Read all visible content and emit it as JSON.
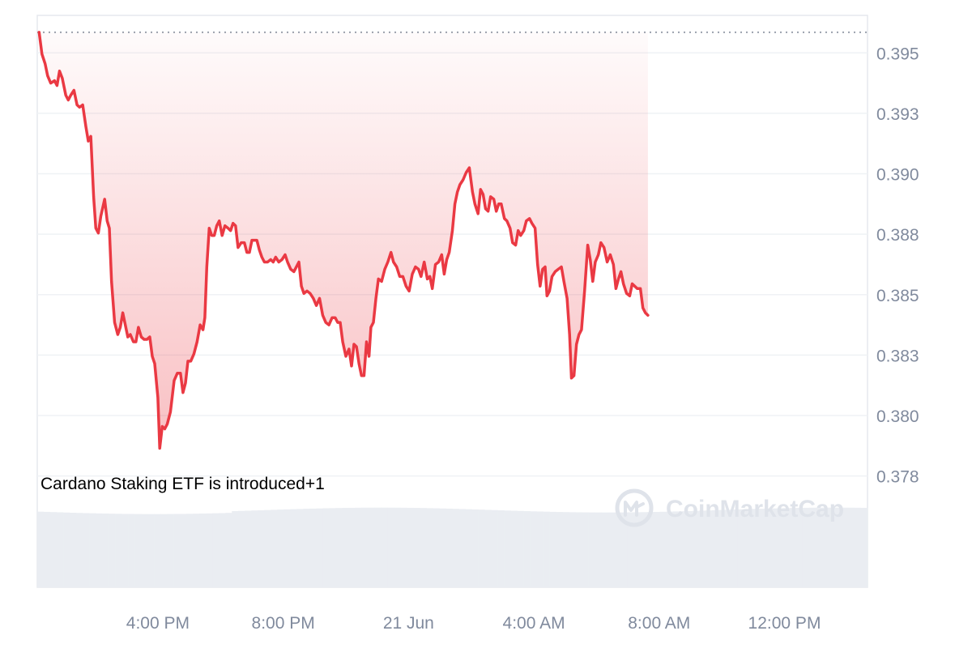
{
  "annotation": {
    "text": "Cardano Staking ETF is introduced+1"
  },
  "watermark": {
    "text": "CoinMarketCap",
    "icon": "coinmarketcap-logo-icon"
  },
  "colors": {
    "line": "#ea3943",
    "area_fill": "#ea3943",
    "grid": "#eff2f5",
    "axis_text": "#808a9d",
    "volume": "#eaedf2",
    "reference_line": "#9aa1ad"
  },
  "chart_data": {
    "type": "area",
    "title": "",
    "xlabel": "",
    "ylabel": "",
    "x_ticks": [
      "4:00 PM",
      "8:00 PM",
      "21 Jun",
      "4:00 AM",
      "8:00 AM",
      "12:00 PM"
    ],
    "x_tick_hours": [
      4,
      8,
      12,
      16,
      20,
      24
    ],
    "x_range_hours": [
      0.15,
      26.65
    ],
    "y_ticks": [
      "0.395",
      "0.393",
      "0.390",
      "0.388",
      "0.385",
      "0.383",
      "0.380",
      "0.378"
    ],
    "y_tick_values": [
      0.39525,
      0.39275,
      0.39025,
      0.38775,
      0.38525,
      0.38275,
      0.38025,
      0.37775
    ],
    "y_range": [
      0.3765,
      0.3968
    ],
    "reference_value": 0.3961,
    "grid": "horizontal",
    "series": [
      {
        "points": [
          [
            0.21,
            0.3961
          ],
          [
            0.3,
            0.3952
          ],
          [
            0.4,
            0.3948
          ],
          [
            0.48,
            0.3943
          ],
          [
            0.58,
            0.394
          ],
          [
            0.7,
            0.3941
          ],
          [
            0.78,
            0.3939
          ],
          [
            0.86,
            0.3945
          ],
          [
            0.95,
            0.3942
          ],
          [
            1.06,
            0.3935
          ],
          [
            1.14,
            0.3933
          ],
          [
            1.22,
            0.3935
          ],
          [
            1.32,
            0.3937
          ],
          [
            1.42,
            0.3931
          ],
          [
            1.5,
            0.393
          ],
          [
            1.6,
            0.3931
          ],
          [
            1.7,
            0.3922
          ],
          [
            1.78,
            0.3916
          ],
          [
            1.86,
            0.3918
          ],
          [
            1.95,
            0.3893
          ],
          [
            2.02,
            0.388
          ],
          [
            2.1,
            0.3878
          ],
          [
            2.18,
            0.3885
          ],
          [
            2.3,
            0.3892
          ],
          [
            2.38,
            0.3883
          ],
          [
            2.45,
            0.388
          ],
          [
            2.52,
            0.3858
          ],
          [
            2.62,
            0.3841
          ],
          [
            2.72,
            0.3836
          ],
          [
            2.8,
            0.3839
          ],
          [
            2.88,
            0.3845
          ],
          [
            2.96,
            0.384
          ],
          [
            3.04,
            0.3835
          ],
          [
            3.12,
            0.3836
          ],
          [
            3.22,
            0.3833
          ],
          [
            3.3,
            0.3833
          ],
          [
            3.38,
            0.3839
          ],
          [
            3.47,
            0.3835
          ],
          [
            3.56,
            0.3834
          ],
          [
            3.65,
            0.3834
          ],
          [
            3.74,
            0.3835
          ],
          [
            3.82,
            0.3827
          ],
          [
            3.9,
            0.3824
          ],
          [
            4.0,
            0.381
          ],
          [
            4.06,
            0.3789
          ],
          [
            4.14,
            0.3798
          ],
          [
            4.22,
            0.3797
          ],
          [
            4.3,
            0.3799
          ],
          [
            4.4,
            0.3804
          ],
          [
            4.52,
            0.3817
          ],
          [
            4.62,
            0.382
          ],
          [
            4.72,
            0.382
          ],
          [
            4.8,
            0.3812
          ],
          [
            4.88,
            0.3816
          ],
          [
            4.96,
            0.3825
          ],
          [
            5.05,
            0.3825
          ],
          [
            5.15,
            0.3828
          ],
          [
            5.25,
            0.3833
          ],
          [
            5.35,
            0.384
          ],
          [
            5.44,
            0.3838
          ],
          [
            5.5,
            0.3843
          ],
          [
            5.56,
            0.3864
          ],
          [
            5.64,
            0.388
          ],
          [
            5.72,
            0.3877
          ],
          [
            5.8,
            0.3877
          ],
          [
            5.88,
            0.3881
          ],
          [
            5.96,
            0.3883
          ],
          [
            6.05,
            0.3877
          ],
          [
            6.14,
            0.3881
          ],
          [
            6.24,
            0.388
          ],
          [
            6.32,
            0.3879
          ],
          [
            6.4,
            0.3882
          ],
          [
            6.48,
            0.3881
          ],
          [
            6.56,
            0.3872
          ],
          [
            6.66,
            0.3874
          ],
          [
            6.76,
            0.3874
          ],
          [
            6.84,
            0.387
          ],
          [
            6.92,
            0.387
          ],
          [
            7.0,
            0.3875
          ],
          [
            7.08,
            0.3875
          ],
          [
            7.16,
            0.3875
          ],
          [
            7.24,
            0.3871
          ],
          [
            7.32,
            0.3868
          ],
          [
            7.4,
            0.3866
          ],
          [
            7.5,
            0.3866
          ],
          [
            7.6,
            0.3867
          ],
          [
            7.68,
            0.3866
          ],
          [
            7.76,
            0.3868
          ],
          [
            7.86,
            0.3866
          ],
          [
            7.96,
            0.3867
          ],
          [
            8.06,
            0.3869
          ],
          [
            8.14,
            0.3866
          ],
          [
            8.24,
            0.3863
          ],
          [
            8.34,
            0.3862
          ],
          [
            8.42,
            0.3864
          ],
          [
            8.5,
            0.3866
          ],
          [
            8.58,
            0.3856
          ],
          [
            8.66,
            0.3853
          ],
          [
            8.76,
            0.3854
          ],
          [
            8.86,
            0.3853
          ],
          [
            8.96,
            0.3851
          ],
          [
            9.06,
            0.3848
          ],
          [
            9.16,
            0.3851
          ],
          [
            9.26,
            0.3844
          ],
          [
            9.36,
            0.3841
          ],
          [
            9.46,
            0.384
          ],
          [
            9.56,
            0.3843
          ],
          [
            9.66,
            0.3843
          ],
          [
            9.74,
            0.3841
          ],
          [
            9.82,
            0.3841
          ],
          [
            9.9,
            0.3833
          ],
          [
            10.0,
            0.3827
          ],
          [
            10.1,
            0.383
          ],
          [
            10.18,
            0.3823
          ],
          [
            10.26,
            0.3832
          ],
          [
            10.34,
            0.3831
          ],
          [
            10.42,
            0.3824
          ],
          [
            10.5,
            0.3819
          ],
          [
            10.58,
            0.3819
          ],
          [
            10.66,
            0.3833
          ],
          [
            10.74,
            0.3827
          ],
          [
            10.8,
            0.3839
          ],
          [
            10.88,
            0.3841
          ],
          [
            10.96,
            0.3851
          ],
          [
            11.04,
            0.3859
          ],
          [
            11.14,
            0.3858
          ],
          [
            11.24,
            0.3863
          ],
          [
            11.34,
            0.3866
          ],
          [
            11.44,
            0.387
          ],
          [
            11.52,
            0.3866
          ],
          [
            11.62,
            0.3864
          ],
          [
            11.72,
            0.386
          ],
          [
            11.82,
            0.386
          ],
          [
            11.92,
            0.3856
          ],
          [
            12.02,
            0.3854
          ],
          [
            12.12,
            0.3861
          ],
          [
            12.22,
            0.3864
          ],
          [
            12.32,
            0.3863
          ],
          [
            12.4,
            0.386
          ],
          [
            12.5,
            0.3866
          ],
          [
            12.6,
            0.3859
          ],
          [
            12.68,
            0.386
          ],
          [
            12.76,
            0.3855
          ],
          [
            12.86,
            0.3865
          ],
          [
            12.96,
            0.3866
          ],
          [
            13.06,
            0.3869
          ],
          [
            13.14,
            0.3861
          ],
          [
            13.22,
            0.3867
          ],
          [
            13.3,
            0.387
          ],
          [
            13.4,
            0.3879
          ],
          [
            13.48,
            0.389
          ],
          [
            13.56,
            0.3895
          ],
          [
            13.64,
            0.3898
          ],
          [
            13.74,
            0.39
          ],
          [
            13.84,
            0.3903
          ],
          [
            13.94,
            0.3905
          ],
          [
            14.04,
            0.3895
          ],
          [
            14.12,
            0.389
          ],
          [
            14.22,
            0.3886
          ],
          [
            14.3,
            0.3896
          ],
          [
            14.38,
            0.3894
          ],
          [
            14.46,
            0.3888
          ],
          [
            14.54,
            0.3887
          ],
          [
            14.62,
            0.3893
          ],
          [
            14.72,
            0.3892
          ],
          [
            14.8,
            0.3887
          ],
          [
            14.88,
            0.389
          ],
          [
            14.96,
            0.389
          ],
          [
            15.06,
            0.3884
          ],
          [
            15.14,
            0.3883
          ],
          [
            15.24,
            0.388
          ],
          [
            15.32,
            0.3874
          ],
          [
            15.42,
            0.3873
          ],
          [
            15.5,
            0.3879
          ],
          [
            15.58,
            0.3877
          ],
          [
            15.68,
            0.3879
          ],
          [
            15.76,
            0.3883
          ],
          [
            15.86,
            0.3884
          ],
          [
            15.94,
            0.3882
          ],
          [
            16.04,
            0.388
          ],
          [
            16.12,
            0.3865
          ],
          [
            16.2,
            0.3856
          ],
          [
            16.28,
            0.3863
          ],
          [
            16.36,
            0.3864
          ],
          [
            16.42,
            0.3852
          ],
          [
            16.5,
            0.3854
          ],
          [
            16.58,
            0.386
          ],
          [
            16.68,
            0.3862
          ],
          [
            16.78,
            0.3863
          ],
          [
            16.88,
            0.3864
          ],
          [
            16.96,
            0.3858
          ],
          [
            17.06,
            0.3851
          ],
          [
            17.14,
            0.3836
          ],
          [
            17.2,
            0.3818
          ],
          [
            17.28,
            0.3819
          ],
          [
            17.36,
            0.3832
          ],
          [
            17.44,
            0.3836
          ],
          [
            17.52,
            0.3838
          ],
          [
            17.62,
            0.3854
          ],
          [
            17.72,
            0.3873
          ],
          [
            17.8,
            0.3867
          ],
          [
            17.88,
            0.3858
          ],
          [
            17.96,
            0.3866
          ],
          [
            18.06,
            0.3869
          ],
          [
            18.14,
            0.3874
          ],
          [
            18.24,
            0.3872
          ],
          [
            18.34,
            0.3866
          ],
          [
            18.44,
            0.3869
          ],
          [
            18.54,
            0.3865
          ],
          [
            18.62,
            0.3855
          ],
          [
            18.7,
            0.3859
          ],
          [
            18.78,
            0.3862
          ],
          [
            18.86,
            0.3857
          ],
          [
            18.96,
            0.3853
          ],
          [
            19.06,
            0.3852
          ],
          [
            19.14,
            0.3857
          ],
          [
            19.22,
            0.3856
          ],
          [
            19.3,
            0.3855
          ],
          [
            19.4,
            0.3855
          ],
          [
            19.48,
            0.3847
          ],
          [
            19.56,
            0.3845
          ],
          [
            19.64,
            0.3844
          ]
        ]
      }
    ],
    "volume_level": 0.3
  }
}
